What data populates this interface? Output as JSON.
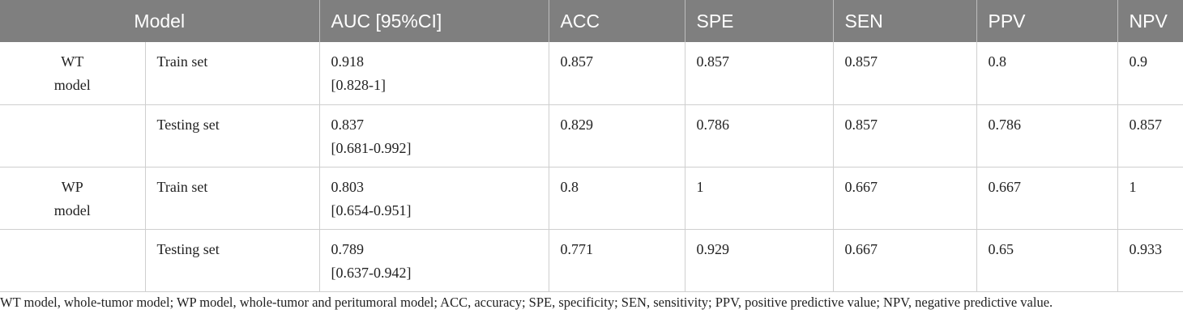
{
  "headers": {
    "model": "Model",
    "auc": "AUC [95%CI]",
    "acc": "ACC",
    "spe": "SPE",
    "sen": "SEN",
    "ppv": "PPV",
    "npv": "NPV"
  },
  "rows": [
    {
      "model_line1": "WT",
      "model_line2": "model",
      "set": "Train set",
      "auc_value": "0.918",
      "auc_ci": "[0.828-1]",
      "acc": "0.857",
      "spe": "0.857",
      "sen": "0.857",
      "ppv": "0.8",
      "npv": "0.9"
    },
    {
      "model_line1": "",
      "model_line2": "",
      "set": "Testing set",
      "auc_value": "0.837",
      "auc_ci": "[0.681-0.992]",
      "acc": "0.829",
      "spe": "0.786",
      "sen": "0.857",
      "ppv": "0.786",
      "npv": "0.857"
    },
    {
      "model_line1": "WP",
      "model_line2": "model",
      "set": "Train set",
      "auc_value": "0.803",
      "auc_ci": "[0.654-0.951]",
      "acc": "0.8",
      "spe": "1",
      "sen": "0.667",
      "ppv": "0.667",
      "npv": "1"
    },
    {
      "model_line1": "",
      "model_line2": "",
      "set": "Testing set",
      "auc_value": "0.789",
      "auc_ci": "[0.637-0.942]",
      "acc": "0.771",
      "spe": "0.929",
      "sen": "0.667",
      "ppv": "0.65",
      "npv": "0.933"
    }
  ],
  "footnote": "WT model, whole-tumor model; WP model, whole-tumor and peritumoral model; ACC, accuracy; SPE, specificity; SEN, sensitivity; PPV, positive predictive value; NPV, negative predictive value.",
  "colors": {
    "header_background": "#7f7f7f",
    "header_text": "#ffffff",
    "grid_line": "#cfcfcf",
    "body_text": "#222222"
  }
}
